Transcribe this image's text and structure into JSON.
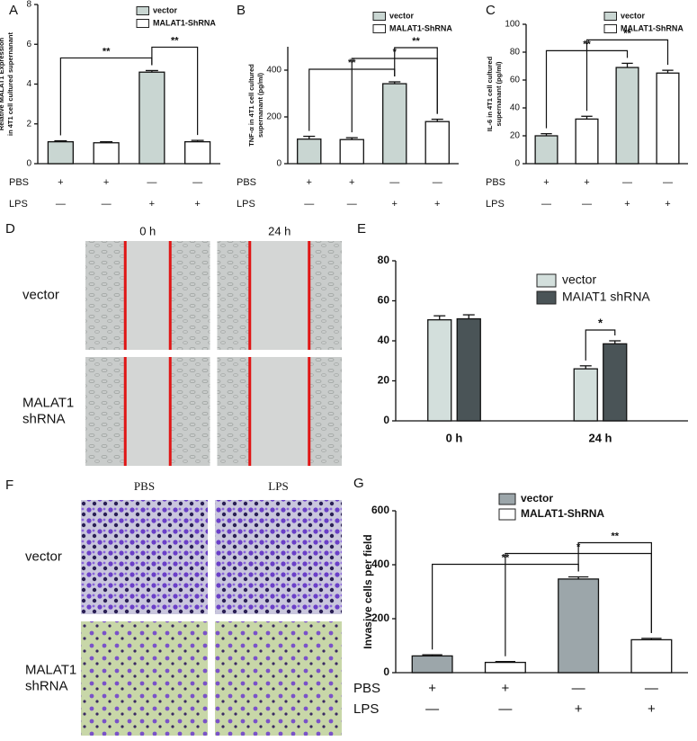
{
  "chart_data": [
    {
      "type": "bar",
      "label": "A",
      "ylabel": [
        "Relative MALAT1 Expression",
        "in 4T1 cell cultured supernanant"
      ],
      "ylim": [
        0,
        8
      ],
      "yticks": [
        0,
        2,
        4,
        6,
        8
      ],
      "series": [
        {
          "name": "vector",
          "color": "#c9d6d2",
          "values": [
            1.1,
            null,
            4.6,
            null
          ],
          "errors": [
            0.05,
            null,
            0.08,
            null
          ]
        },
        {
          "name": "MALAT1-ShRNA",
          "color": "#ffffff",
          "values": [
            null,
            1.05,
            null,
            1.1
          ],
          "errors": [
            null,
            0.05,
            null,
            0.07
          ]
        }
      ],
      "annotations": [
        {
          "text": "**",
          "between": [
            0,
            2
          ]
        },
        {
          "text": "**",
          "between": [
            2,
            3
          ]
        }
      ],
      "conditions": [
        {
          "name": "PBS",
          "signs": [
            "+",
            "+",
            "—",
            "—"
          ]
        },
        {
          "name": "LPS",
          "signs": [
            "—",
            "—",
            "+",
            "+"
          ]
        }
      ]
    },
    {
      "type": "bar",
      "label": "B",
      "ylabel": [
        "TNF-α  in 4T1 cell cultured",
        "supernanant (pg/ml)"
      ],
      "ylim": [
        0,
        500
      ],
      "yticks": [
        0,
        200,
        400
      ],
      "series": [
        {
          "name": "vector",
          "color": "#c9d6d2",
          "values": [
            105,
            null,
            342,
            null
          ],
          "errors": [
            12,
            null,
            8,
            null
          ]
        },
        {
          "name": "MALAT1-ShRNA",
          "color": "#ffffff",
          "values": [
            null,
            103,
            null,
            180
          ],
          "errors": [
            null,
            8,
            null,
            10
          ]
        }
      ],
      "annotations": [
        {
          "text": "**",
          "between": [
            0,
            2
          ]
        },
        {
          "text": "*",
          "between": [
            1,
            3
          ]
        },
        {
          "text": "**",
          "between": [
            2,
            3
          ]
        }
      ],
      "conditions": [
        {
          "name": "PBS",
          "signs": [
            "+",
            "+",
            "—",
            "—"
          ]
        },
        {
          "name": "LPS",
          "signs": [
            "—",
            "—",
            "+",
            "+"
          ]
        }
      ]
    },
    {
      "type": "bar",
      "label": "C",
      "ylabel": [
        "IL-6 in 4T1 cell cultured",
        "supernanant (pg/ml)"
      ],
      "ylim": [
        0,
        100
      ],
      "yticks": [
        0,
        20,
        40,
        60,
        80,
        100
      ],
      "series": [
        {
          "name": "vector",
          "color": "#c9d6d2",
          "values": [
            20,
            null,
            69,
            null
          ],
          "errors": [
            1.5,
            null,
            3,
            null
          ]
        },
        {
          "name": "MALAT1-ShRNA",
          "color": "#ffffff",
          "values": [
            null,
            32,
            null,
            65
          ],
          "errors": [
            null,
            2,
            null,
            2
          ]
        }
      ],
      "annotations": [
        {
          "text": "**",
          "between": [
            0,
            2
          ]
        },
        {
          "text": "**",
          "between": [
            1,
            3
          ]
        }
      ],
      "conditions": [
        {
          "name": "PBS",
          "signs": [
            "+",
            "+",
            "—",
            "—"
          ]
        },
        {
          "name": "LPS",
          "signs": [
            "—",
            "—",
            "+",
            "+"
          ]
        }
      ]
    },
    {
      "type": "grouped_bar",
      "label": "E",
      "categories": [
        "0 h",
        "24 h"
      ],
      "ylim": [
        0,
        80
      ],
      "yticks": [
        0,
        20,
        40,
        60,
        80
      ],
      "series": [
        {
          "name": "vector",
          "color": "#d3dfdc",
          "values": [
            50.5,
            26
          ],
          "errors": [
            2,
            1.5
          ]
        },
        {
          "name": "MAIAT1 shRNA",
          "color": "#4a5457",
          "values": [
            51,
            38.5
          ],
          "errors": [
            2,
            1.5
          ]
        }
      ],
      "annotations": [
        {
          "text": "*",
          "category": 1
        }
      ]
    },
    {
      "type": "bar",
      "label": "G",
      "ylabel": [
        "Invasive cells per field"
      ],
      "ylim": [
        0,
        600
      ],
      "yticks": [
        0,
        200,
        400,
        600
      ],
      "series": [
        {
          "name": "vector",
          "color": "#9ca6aa",
          "values": [
            62,
            null,
            347,
            null
          ],
          "errors": [
            4,
            null,
            8,
            null
          ]
        },
        {
          "name": "MALAT1-ShRNA",
          "color": "#ffffff",
          "values": [
            null,
            38,
            null,
            122
          ],
          "errors": [
            null,
            3,
            null,
            5
          ]
        }
      ],
      "annotations": [
        {
          "text": "**",
          "between": [
            0,
            2
          ]
        },
        {
          "text": "*",
          "between": [
            1,
            3
          ]
        },
        {
          "text": "**",
          "between": [
            2,
            3
          ]
        }
      ],
      "conditions": [
        {
          "name": "PBS",
          "signs": [
            "+",
            "+",
            "—",
            "—"
          ]
        },
        {
          "name": "LPS",
          "signs": [
            "—",
            "—",
            "+",
            "+"
          ]
        }
      ]
    }
  ],
  "image_panels": [
    {
      "label": "D",
      "columns": [
        "0 h",
        "24 h"
      ],
      "rows": [
        [
          "vector"
        ],
        [
          "MALAT1",
          "shRNA"
        ]
      ]
    },
    {
      "label": "F",
      "columns": [
        "PBS",
        "LPS"
      ],
      "rows": [
        [
          "vector"
        ],
        [
          "MALAT1",
          "shRNA"
        ]
      ]
    }
  ]
}
